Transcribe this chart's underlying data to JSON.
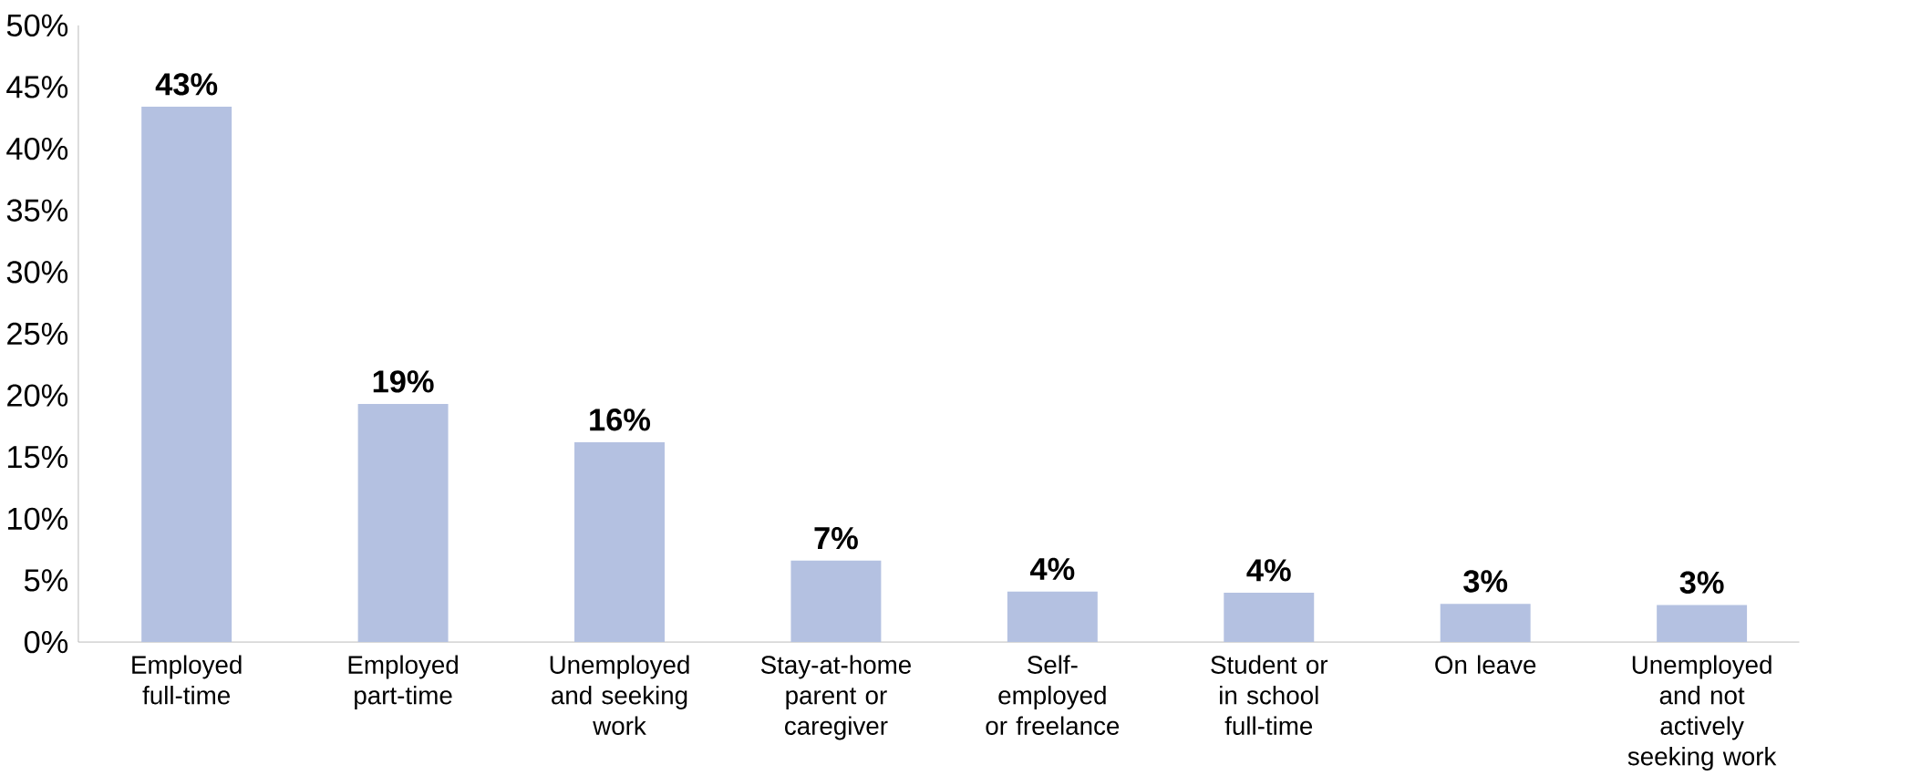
{
  "chart_data": {
    "type": "bar",
    "categories": [
      "Employed full-time",
      "Employed part-time",
      "Unemployed and seeking work",
      "Stay-at-home parent or caregiver",
      "Self-employed or freelance",
      "Student or in school full-time",
      "On leave",
      "Unemployed and not actively seeking work"
    ],
    "values": [
      43.4,
      19.3,
      16.2,
      6.6,
      4.1,
      4.0,
      3.1,
      3.0
    ],
    "value_labels": [
      "43%",
      "19%",
      "16%",
      "7%",
      "4%",
      "4%",
      "3%",
      "3%"
    ],
    "color": "#b4c1e1",
    "ylim": [
      0,
      50
    ],
    "yticks": [
      {
        "value": 0,
        "label": "0%"
      },
      {
        "value": 5,
        "label": "5%"
      },
      {
        "value": 10,
        "label": "10%"
      },
      {
        "value": 15,
        "label": "15%"
      },
      {
        "value": 20,
        "label": "20%"
      },
      {
        "value": 25,
        "label": "25%"
      },
      {
        "value": 30,
        "label": "30%"
      },
      {
        "value": 35,
        "label": "35%"
      },
      {
        "value": 40,
        "label": "40%"
      },
      {
        "value": 45,
        "label": "45%"
      },
      {
        "value": 50,
        "label": "50%"
      }
    ],
    "grid": false
  }
}
